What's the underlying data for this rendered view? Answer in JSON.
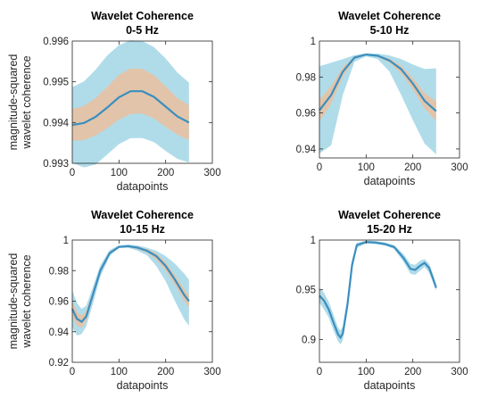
{
  "chart_data": [
    {
      "type": "line",
      "title": "Wavelet Coherence",
      "subtitle": "0-5 Hz",
      "xlabel": "datapoints",
      "ylabel": "magnitude-squared wavelet coherence",
      "xlim": [
        0,
        300
      ],
      "ylim": [
        0.993,
        0.996
      ],
      "xticks": [
        "0",
        "100",
        "200",
        "300"
      ],
      "yticks": [
        "0.993",
        "0.994",
        "0.995",
        "0.996"
      ],
      "grid": false,
      "colors": {
        "mean": "#3a8fc0",
        "inner_band": "#e2c4aa",
        "outer_band": "#b0dcea"
      },
      "x": [
        0,
        25,
        50,
        75,
        100,
        125,
        150,
        175,
        200,
        225,
        250
      ],
      "mean": [
        0.99394,
        0.99399,
        0.99414,
        0.99437,
        0.99462,
        0.99477,
        0.99477,
        0.99463,
        0.99439,
        0.99415,
        0.994
      ],
      "inner_lower": [
        0.99355,
        0.99357,
        0.99368,
        0.99386,
        0.99407,
        0.99421,
        0.99422,
        0.9941,
        0.99389,
        0.9937,
        0.99357
      ],
      "inner_upper": [
        0.99433,
        0.99441,
        0.9946,
        0.99488,
        0.99517,
        0.99533,
        0.99532,
        0.99516,
        0.99489,
        0.9946,
        0.99443
      ],
      "outer_lower": [
        0.99301,
        0.9929,
        0.99297,
        0.99322,
        0.99347,
        0.99362,
        0.99362,
        0.99352,
        0.9933,
        0.99311,
        0.99302
      ],
      "outer_upper": [
        0.99487,
        0.99501,
        0.9953,
        0.99565,
        0.9959,
        0.99602,
        0.996,
        0.99585,
        0.99557,
        0.99523,
        0.99498
      ]
    },
    {
      "type": "line",
      "title": "Wavelet Coherence",
      "subtitle": "5-10 Hz",
      "xlabel": "datapoints",
      "ylabel": "",
      "xlim": [
        0,
        300
      ],
      "ylim": [
        0.935,
        1.0
      ],
      "xticks": [
        "0",
        "100",
        "200",
        "300"
      ],
      "yticks": [
        "1",
        "0.98",
        "0.96",
        "0.94"
      ],
      "grid": false,
      "colors": {
        "mean": "#3a8fc0",
        "inner_band": "#e2c4aa",
        "outer_band": "#b0dcea"
      },
      "x": [
        0,
        25,
        50,
        75,
        100,
        125,
        150,
        175,
        200,
        225,
        250
      ],
      "mean": [
        0.9615,
        0.97,
        0.983,
        0.9908,
        0.9925,
        0.9918,
        0.9892,
        0.9843,
        0.9764,
        0.9668,
        0.961
      ],
      "inner_lower": [
        0.9555,
        0.965,
        0.98,
        0.99,
        0.992,
        0.9912,
        0.988,
        0.982,
        0.973,
        0.9625,
        0.9555
      ],
      "inner_upper": [
        0.9675,
        0.975,
        0.9855,
        0.9915,
        0.9928,
        0.9922,
        0.9902,
        0.9862,
        0.9795,
        0.971,
        0.9665
      ],
      "outer_lower": [
        0.9375,
        0.942,
        0.97,
        0.9885,
        0.9915,
        0.99,
        0.983,
        0.97,
        0.956,
        0.943,
        0.937
      ],
      "outer_upper": [
        0.986,
        0.988,
        0.99,
        0.9922,
        0.9932,
        0.993,
        0.992,
        0.99,
        0.987,
        0.9845,
        0.9848
      ]
    },
    {
      "type": "line",
      "title": "Wavelet Coherence",
      "subtitle": "10-15 Hz",
      "xlabel": "datapoints",
      "ylabel": "magnitude-squared wavelet coherence",
      "xlim": [
        0,
        300
      ],
      "ylim": [
        0.92,
        1.0
      ],
      "xticks": [
        "0",
        "100",
        "200",
        "300"
      ],
      "yticks": [
        "1",
        "0.98",
        "0.96",
        "0.94",
        "0.92"
      ],
      "grid": false,
      "colors": {
        "mean": "#3a8fc0",
        "inner_band": "#e2c4aa",
        "outer_band": "#b0dcea"
      },
      "x": [
        0,
        10,
        20,
        30,
        45,
        60,
        80,
        100,
        120,
        140,
        160,
        180,
        200,
        220,
        240,
        250
      ],
      "mean": [
        0.955,
        0.9485,
        0.9465,
        0.95,
        0.965,
        0.98,
        0.9915,
        0.9955,
        0.996,
        0.995,
        0.993,
        0.9895,
        0.983,
        0.974,
        0.964,
        0.96
      ],
      "inner_lower": [
        0.95,
        0.944,
        0.9425,
        0.947,
        0.9625,
        0.9785,
        0.9905,
        0.995,
        0.9955,
        0.994,
        0.992,
        0.987,
        0.98,
        0.9705,
        0.96,
        0.956
      ],
      "inner_upper": [
        0.96,
        0.953,
        0.9505,
        0.9535,
        0.9675,
        0.9815,
        0.9925,
        0.996,
        0.9965,
        0.9958,
        0.994,
        0.9915,
        0.9855,
        0.977,
        0.968,
        0.964
      ],
      "outer_lower": [
        0.943,
        0.9375,
        0.9385,
        0.9435,
        0.959,
        0.976,
        0.9895,
        0.9948,
        0.995,
        0.993,
        0.99,
        0.983,
        0.973,
        0.96,
        0.948,
        0.944
      ],
      "outer_upper": [
        0.967,
        0.959,
        0.955,
        0.957,
        0.97,
        0.9835,
        0.9935,
        0.9965,
        0.997,
        0.9965,
        0.995,
        0.993,
        0.9895,
        0.9845,
        0.978,
        0.974
      ]
    },
    {
      "type": "line",
      "title": "Wavelet Coherence",
      "subtitle": "15-20 Hz",
      "xlabel": "datapoints",
      "ylabel": "",
      "xlim": [
        0,
        300
      ],
      "ylim": [
        0.877,
        1.0
      ],
      "xticks": [
        "0",
        "100",
        "200",
        "300"
      ],
      "yticks": [
        "1",
        "0.95",
        "0.9"
      ],
      "grid": false,
      "colors": {
        "mean": "#3a8fc0",
        "inner_band": "#e2c4aa",
        "outer_band": "#b0dcea"
      },
      "x": [
        0,
        10,
        20,
        30,
        40,
        45,
        50,
        60,
        70,
        80,
        100,
        120,
        140,
        160,
        180,
        195,
        205,
        215,
        225,
        235,
        245,
        250
      ],
      "mean": [
        0.944,
        0.939,
        0.93,
        0.917,
        0.905,
        0.902,
        0.906,
        0.935,
        0.975,
        0.995,
        0.998,
        0.9975,
        0.996,
        0.993,
        0.982,
        0.971,
        0.97,
        0.974,
        0.977,
        0.972,
        0.959,
        0.952
      ],
      "inner_lower": [
        0.942,
        0.937,
        0.928,
        0.915,
        0.903,
        0.9,
        0.904,
        0.933,
        0.973,
        0.994,
        0.9975,
        0.997,
        0.9955,
        0.9925,
        0.981,
        0.97,
        0.969,
        0.973,
        0.976,
        0.971,
        0.958,
        0.951
      ],
      "inner_upper": [
        0.946,
        0.941,
        0.932,
        0.919,
        0.907,
        0.904,
        0.908,
        0.937,
        0.977,
        0.996,
        0.9985,
        0.998,
        0.9965,
        0.9935,
        0.983,
        0.972,
        0.971,
        0.975,
        0.978,
        0.973,
        0.96,
        0.953
      ],
      "outer_lower": [
        0.937,
        0.93,
        0.922,
        0.909,
        0.898,
        0.895,
        0.899,
        0.928,
        0.969,
        0.992,
        0.9965,
        0.996,
        0.9945,
        0.991,
        0.978,
        0.966,
        0.965,
        0.969,
        0.973,
        0.967,
        0.955,
        0.949
      ],
      "outer_upper": [
        0.952,
        0.947,
        0.938,
        0.925,
        0.912,
        0.909,
        0.913,
        0.942,
        0.98,
        0.997,
        0.9995,
        0.999,
        0.9975,
        0.995,
        0.986,
        0.976,
        0.975,
        0.979,
        0.981,
        0.976,
        0.963,
        0.955
      ]
    }
  ]
}
